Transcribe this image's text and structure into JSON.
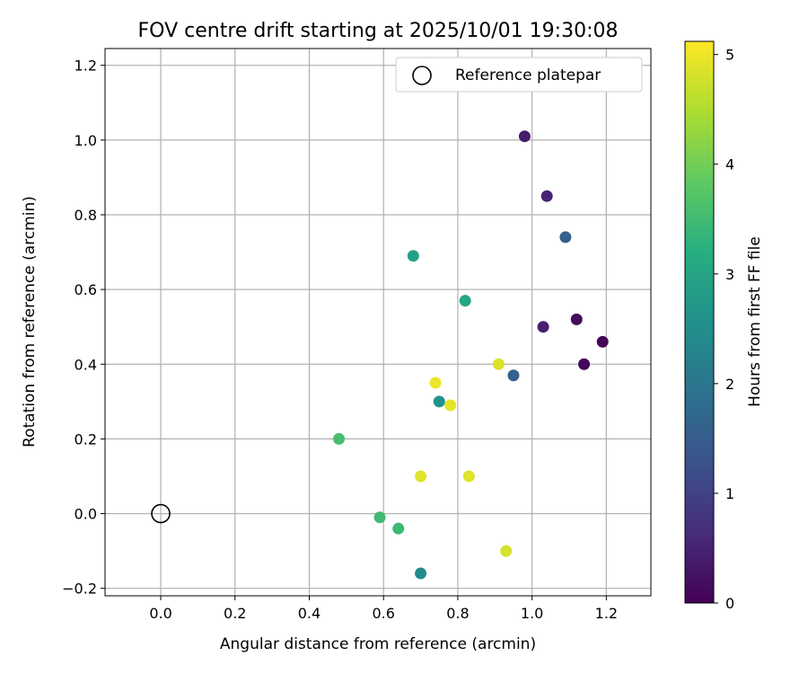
{
  "chart_data": {
    "type": "scatter",
    "title": "FOV centre drift starting at 2025/10/01 19:30:08",
    "xlabel": "Angular distance from reference (arcmin)",
    "ylabel": "Rotation from reference (arcmin)",
    "xlim": [
      -0.15,
      1.32
    ],
    "ylim": [
      -0.22,
      1.245
    ],
    "xticks": [
      0.0,
      0.2,
      0.4,
      0.6,
      0.8,
      1.0,
      1.2
    ],
    "xtick_labels": [
      "0.0",
      "0.2",
      "0.4",
      "0.6",
      "0.8",
      "1.0",
      "1.2"
    ],
    "yticks": [
      -0.2,
      0.0,
      0.2,
      0.4,
      0.6,
      0.8,
      1.0,
      1.2
    ],
    "ytick_labels": [
      "−0.2",
      "0.0",
      "0.2",
      "0.4",
      "0.6",
      "0.8",
      "1.0",
      "1.2"
    ],
    "grid": true,
    "legend": {
      "position": "top-right",
      "entries": [
        "Reference platepar"
      ]
    },
    "reference_point": {
      "x": 0.0,
      "y": 0.0,
      "label": "Reference platepar"
    },
    "colorbar": {
      "label": "Hours from first FF file",
      "range": [
        0,
        5.12
      ],
      "ticks": [
        0,
        1,
        2,
        3,
        4,
        5
      ],
      "tick_labels": [
        "0",
        "1",
        "2",
        "3",
        "4",
        "5"
      ],
      "colormap": "viridis"
    },
    "points": [
      {
        "x": 1.19,
        "y": 0.46,
        "hours": 0.05
      },
      {
        "x": 1.14,
        "y": 0.4,
        "hours": 0.1
      },
      {
        "x": 1.12,
        "y": 0.52,
        "hours": 0.15
      },
      {
        "x": 0.98,
        "y": 1.01,
        "hours": 0.4
      },
      {
        "x": 1.03,
        "y": 0.5,
        "hours": 0.45
      },
      {
        "x": 1.04,
        "y": 0.85,
        "hours": 0.5
      },
      {
        "x": 1.09,
        "y": 0.74,
        "hours": 1.55
      },
      {
        "x": 0.95,
        "y": 0.37,
        "hours": 1.6
      },
      {
        "x": 0.7,
        "y": -0.16,
        "hours": 2.45
      },
      {
        "x": 0.75,
        "y": 0.3,
        "hours": 2.55
      },
      {
        "x": 0.68,
        "y": 0.69,
        "hours": 2.9
      },
      {
        "x": 0.82,
        "y": 0.57,
        "hours": 3.05
      },
      {
        "x": 0.64,
        "y": -0.04,
        "hours": 3.45
      },
      {
        "x": 0.59,
        "y": -0.01,
        "hours": 3.5
      },
      {
        "x": 0.48,
        "y": 0.2,
        "hours": 3.6
      },
      {
        "x": 0.93,
        "y": -0.1,
        "hours": 4.8
      },
      {
        "x": 0.91,
        "y": 0.4,
        "hours": 4.85
      },
      {
        "x": 0.83,
        "y": 0.1,
        "hours": 4.9
      },
      {
        "x": 0.7,
        "y": 0.1,
        "hours": 4.9
      },
      {
        "x": 0.78,
        "y": 0.29,
        "hours": 4.95
      },
      {
        "x": 0.74,
        "y": 0.35,
        "hours": 5.0
      }
    ]
  }
}
